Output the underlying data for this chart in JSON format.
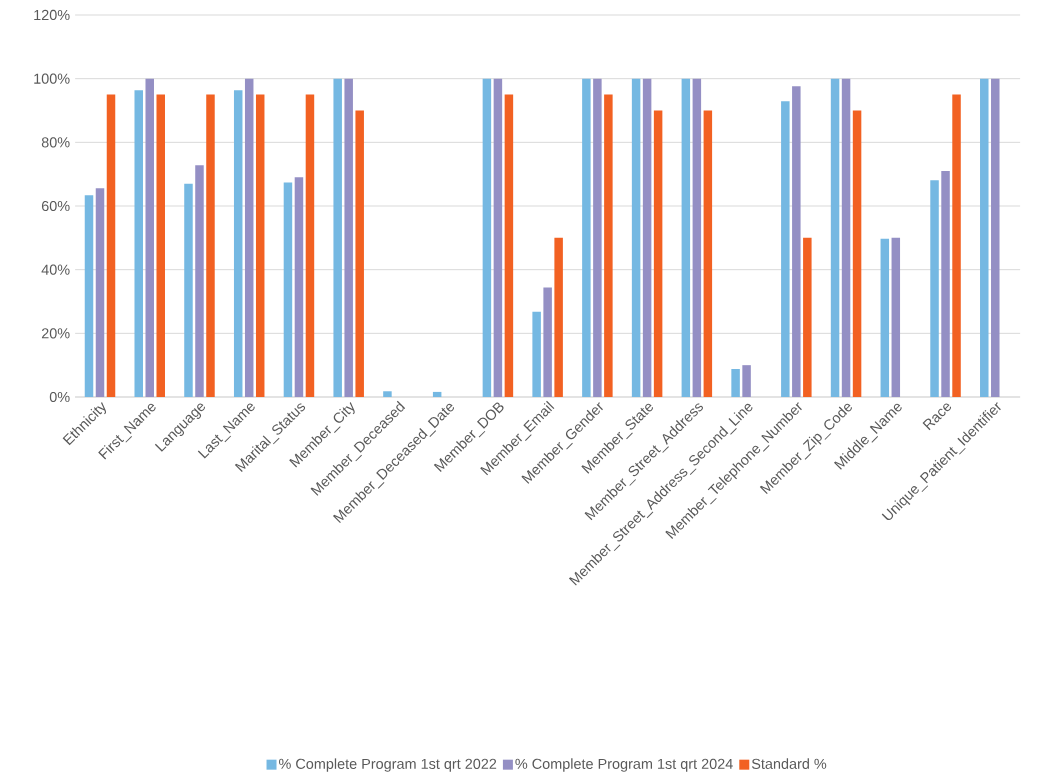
{
  "chart_data": {
    "type": "bar",
    "categories": [
      "Ethnicity",
      "First_Name",
      "Language",
      "Last_Name",
      "Marital_Status",
      "Member_City",
      "Member_Deceased",
      "Member_Deceased_Date",
      "Member_DOB",
      "Member_Email",
      "Member_Gender",
      "Member_State",
      "Member_Street_Address",
      "Member_Street_Address_Second_Line",
      "Member_Telephone_Number",
      "Member_Zip_Code",
      "Middle_Name",
      "Race",
      "Unique_Patient_Identifier"
    ],
    "series": [
      {
        "name": "% Complete Program 1st qrt 2022",
        "color": "#75b8e2",
        "values": [
          63.4,
          96.4,
          67,
          96.4,
          67.4,
          100,
          1.8,
          1.6,
          100,
          26.8,
          100,
          100,
          100,
          8.8,
          92.9,
          100,
          49.7,
          68.1,
          100
        ]
      },
      {
        "name": "% Complete Program 1st qrt 2024",
        "color": "#948fc4",
        "values": [
          65.6,
          100,
          72.8,
          100,
          69,
          100,
          null,
          null,
          100,
          34.4,
          100,
          100,
          100,
          10,
          97.6,
          100,
          50,
          71,
          100
        ]
      },
      {
        "name": "Standard %",
        "color": "#f26122",
        "values": [
          95,
          95,
          95,
          95,
          95,
          90,
          null,
          null,
          95,
          50,
          95,
          90,
          90,
          null,
          50,
          90,
          null,
          95,
          null
        ]
      }
    ],
    "ylim": [
      0,
      120
    ],
    "yticks": [
      {
        "value": 0,
        "label": "0%"
      },
      {
        "value": 20,
        "label": "20%"
      },
      {
        "value": 40,
        "label": "40%"
      },
      {
        "value": 60,
        "label": "60%"
      },
      {
        "value": 80,
        "label": "80%"
      },
      {
        "value": 100,
        "label": "100%"
      },
      {
        "value": 120,
        "label": "120%"
      }
    ],
    "grid": "y",
    "legend": "bottom"
  }
}
